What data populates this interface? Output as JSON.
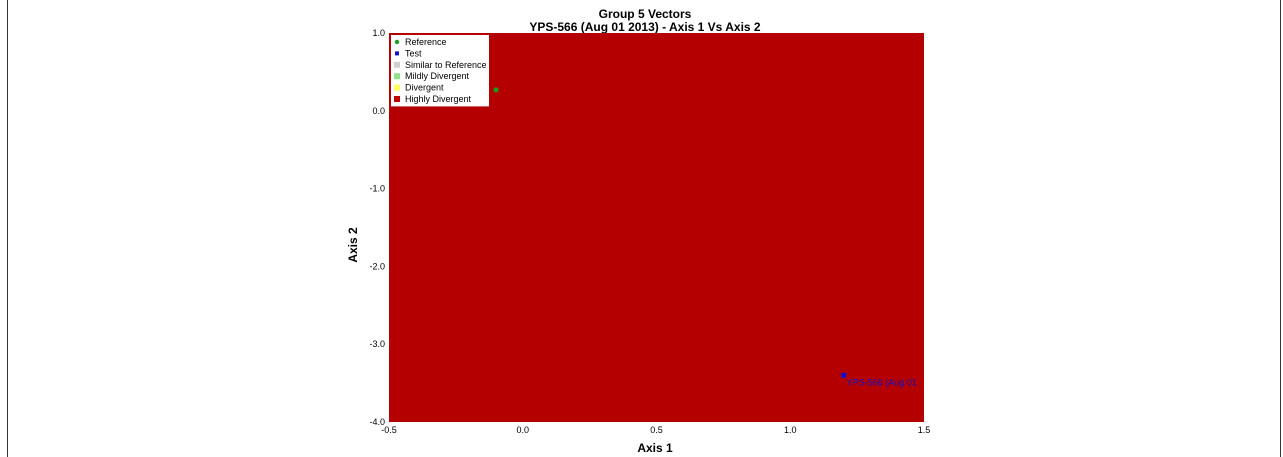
{
  "chart_data": {
    "type": "scatter",
    "title": "Group 5 Vectors",
    "subtitle": "YPS-566 (Aug 01 2013) - Axis 1 Vs Axis 2",
    "xlabel": "Axis 1",
    "ylabel": "Axis 2",
    "xlim": [
      -0.5,
      1.5
    ],
    "ylim": [
      -4.0,
      1.0
    ],
    "x_ticks": [
      "-0.5",
      "0.0",
      "0.5",
      "1.0",
      "1.5"
    ],
    "x_tick_values": [
      -0.5,
      0.0,
      0.5,
      1.0,
      1.5
    ],
    "y_ticks": [
      "1.0",
      "0.0",
      "-1.0",
      "-2.0",
      "-3.0",
      "-4.0"
    ],
    "y_tick_values": [
      1.0,
      0.0,
      -1.0,
      -2.0,
      -3.0,
      -4.0
    ],
    "background_region": {
      "category": "Highly Divergent",
      "color": "#b50000"
    },
    "legend": {
      "placement": "top-left",
      "entries": [
        {
          "label": "Reference",
          "color": "#1a9c1a",
          "marker": "circle"
        },
        {
          "label": "Test",
          "color": "#1010cc",
          "marker": "square"
        },
        {
          "label": "Similar to Reference",
          "color": "#d0d0d0",
          "marker": "square"
        },
        {
          "label": "Mildly Divergent",
          "color": "#90e090",
          "marker": "square"
        },
        {
          "label": "Divergent",
          "color": "#ffff60",
          "marker": "square"
        },
        {
          "label": "Highly Divergent",
          "color": "#c00000",
          "marker": "square"
        }
      ]
    },
    "series": [
      {
        "name": "Reference",
        "color": "#1a9c1a",
        "marker": "circle",
        "points": [
          {
            "x": -0.1,
            "y": 0.27,
            "label": ""
          }
        ]
      },
      {
        "name": "Test",
        "color": "#1010cc",
        "marker": "square",
        "points": [
          {
            "x": 1.2,
            "y": -3.4,
            "label": "YPS-566 (Aug 01"
          }
        ]
      }
    ]
  }
}
